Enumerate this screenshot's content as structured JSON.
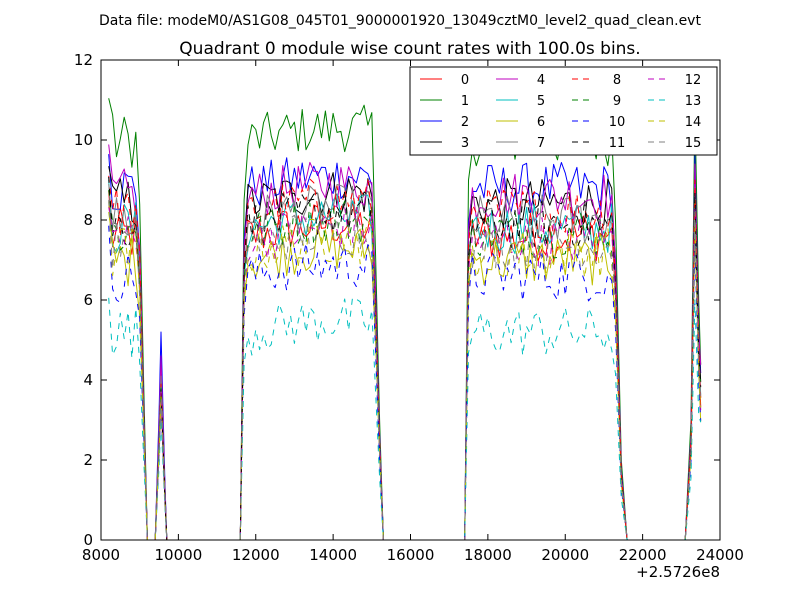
{
  "figure": {
    "suptitle": "Data file: modeM0/AS1G08_045T01_9000001920_13049cztM0_level2_quad_clean.evt",
    "title": "Quadrant 0 module wise count rates with 100.0s bins."
  },
  "chart_data": {
    "type": "line",
    "title": "Quadrant 0 module wise count rates with 100.0s bins.",
    "xlabel": "",
    "ylabel": "",
    "x_offset_label": "+2.5726e8",
    "xlim": [
      8000,
      24000
    ],
    "ylim": [
      0,
      12
    ],
    "x_ticks": [
      8000,
      10000,
      12000,
      14000,
      16000,
      18000,
      20000,
      22000,
      24000
    ],
    "x_tick_labels": [
      "8000",
      "10000",
      "12000",
      "14000",
      "16000",
      "18000",
      "20000",
      "22000",
      "24000"
    ],
    "y_ticks": [
      0,
      2,
      4,
      6,
      8,
      10,
      12
    ],
    "y_tick_labels": [
      "0",
      "2",
      "4",
      "6",
      "8",
      "10",
      "12"
    ],
    "grid": false,
    "legend_position": "top-right",
    "bin_width": 100,
    "gaps": [
      [
        9300,
        9500
      ],
      [
        9700,
        11600
      ],
      [
        15300,
        17400
      ],
      [
        21600,
        23100
      ]
    ],
    "series": [
      {
        "name": "0",
        "color": "#ff0000",
        "dash": "solid",
        "level": 7.6,
        "peak": 3.6
      },
      {
        "name": "1",
        "color": "#008000",
        "dash": "solid",
        "level": 10.0,
        "peak": 4.5
      },
      {
        "name": "2",
        "color": "#0000ff",
        "dash": "solid",
        "level": 8.8,
        "peak": 5.2
      },
      {
        "name": "3",
        "color": "#000000",
        "dash": "solid",
        "level": 8.4,
        "peak": 4.4
      },
      {
        "name": "4",
        "color": "#bf00bf",
        "dash": "solid",
        "level": 8.6,
        "peak": 4.6
      },
      {
        "name": "5",
        "color": "#00bfbf",
        "dash": "solid",
        "level": 7.8,
        "peak": 4.0
      },
      {
        "name": "6",
        "color": "#bfbf00",
        "dash": "solid",
        "level": 7.0,
        "peak": 3.7
      },
      {
        "name": "7",
        "color": "#808080",
        "dash": "solid",
        "level": 8.0,
        "peak": 4.1
      },
      {
        "name": "8",
        "color": "#ff0000",
        "dash": "dashed",
        "level": 8.2,
        "peak": 3.9
      },
      {
        "name": "9",
        "color": "#008000",
        "dash": "dashed",
        "level": 7.7,
        "peak": 3.8
      },
      {
        "name": "10",
        "color": "#0000ff",
        "dash": "dashed",
        "level": 6.6,
        "peak": 3.4
      },
      {
        "name": "11",
        "color": "#000000",
        "dash": "dashed",
        "level": 7.9,
        "peak": 3.8
      },
      {
        "name": "12",
        "color": "#bf00bf",
        "dash": "dashed",
        "level": 7.5,
        "peak": 3.7
      },
      {
        "name": "13",
        "color": "#00bfbf",
        "dash": "dashed",
        "level": 5.2,
        "peak": 3.0
      },
      {
        "name": "14",
        "color": "#bfbf00",
        "dash": "dashed",
        "level": 7.2,
        "peak": 3.6
      },
      {
        "name": "15",
        "color": "#808080",
        "dash": "dashed",
        "level": 7.4,
        "peak": 3.5
      }
    ]
  }
}
